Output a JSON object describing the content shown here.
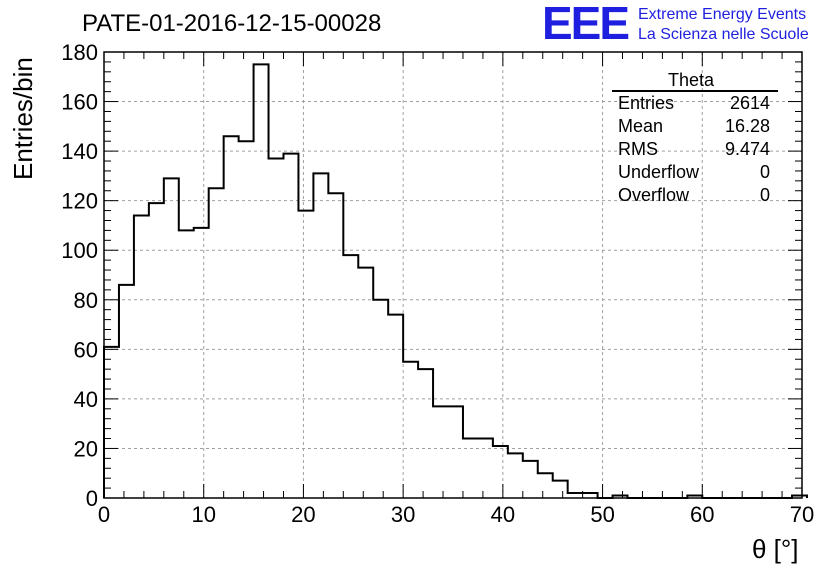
{
  "header": {
    "title": "PATE-01-2016-12-15-00028",
    "logo_text": "EEE",
    "logo_line1": "Extreme Energy Events",
    "logo_line2": "La Scienza nelle Scuole",
    "logo_color": "#1f1fe0"
  },
  "stats": {
    "title": "Theta",
    "rows": [
      {
        "label": "Entries",
        "value": "2614"
      },
      {
        "label": "Mean",
        "value": "16.28"
      },
      {
        "label": "RMS",
        "value": "9.474"
      },
      {
        "label": "Underflow",
        "value": "0"
      },
      {
        "label": "Overflow",
        "value": "0"
      }
    ]
  },
  "chart_data": {
    "type": "histogram",
    "title": "PATE-01-2016-12-15-00028",
    "xlabel": "θ [°]",
    "ylabel": "Entries/bin",
    "xlim": [
      0,
      70
    ],
    "ylim": [
      0,
      180
    ],
    "bin_width": 1.5,
    "x_ticks": [
      0,
      10,
      20,
      30,
      40,
      50,
      60,
      70
    ],
    "y_ticks": [
      0,
      20,
      40,
      60,
      80,
      100,
      120,
      140,
      160,
      180
    ],
    "grid": true,
    "values": [
      61,
      86,
      114,
      119,
      129,
      108,
      109,
      125,
      146,
      144,
      175,
      137,
      139,
      116,
      131,
      123,
      98,
      93,
      80,
      74,
      55,
      52,
      37,
      37,
      24,
      24,
      21,
      18,
      15,
      10,
      7,
      2,
      2,
      0,
      1,
      0,
      0,
      0,
      0,
      1,
      0,
      0,
      0,
      0,
      0,
      0,
      1
    ]
  }
}
